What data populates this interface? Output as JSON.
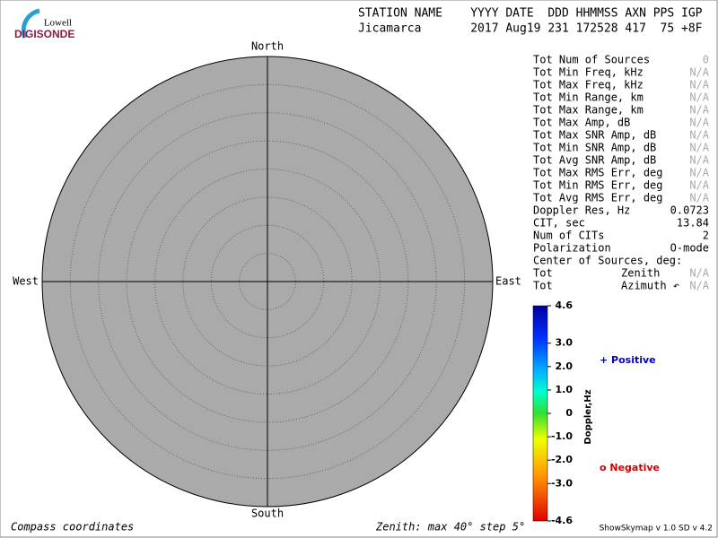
{
  "logo": {
    "top": "Lowell",
    "bottom": "DIGISONDE"
  },
  "header": {
    "line1": "STATION NAME    YYYY DATE  DDD HHMMSS AXN PPS IGP",
    "line2": "Jicamarca       2017 Aug19 231 172528 417  75 +8F"
  },
  "compass": {
    "north": "North",
    "south": "South",
    "east": "East",
    "west": "West",
    "zenith_max": 40,
    "zenith_step": 5
  },
  "stats": {
    "rows": [
      [
        "Tot Num of Sources",
        "0"
      ],
      [
        "Tot Min Freq, kHz",
        "N/A"
      ],
      [
        "Tot Max Freq, kHz",
        "N/A"
      ],
      [
        "Tot Min Range, km",
        "N/A"
      ],
      [
        "Tot Max Range, km",
        "N/A"
      ],
      [
        "Tot Max Amp, dB",
        "N/A"
      ],
      [
        "Tot Max SNR Amp, dB",
        "N/A"
      ],
      [
        "Tot Min SNR Amp, dB",
        "N/A"
      ],
      [
        "Tot Avg SNR Amp, dB",
        "N/A"
      ],
      [
        "Tot Max RMS Err, deg",
        "N/A"
      ],
      [
        "Tot Min RMS Err, deg",
        "N/A"
      ],
      [
        "Tot Avg RMS Err, deg",
        "N/A"
      ],
      [
        "Doppler Res, Hz",
        "0.0723"
      ],
      [
        "CIT, sec",
        "13.84"
      ],
      [
        "Num of CITs",
        "2"
      ],
      [
        "Polarization",
        "O-mode"
      ]
    ],
    "center_title": "Center of Sources, deg:",
    "center_rows": [
      [
        "Tot",
        "Zenith",
        "N/A"
      ],
      [
        "Tot",
        "Azimuth ↶",
        "N/A"
      ]
    ]
  },
  "colorbar": {
    "label": "Doppler,Hz",
    "lim": [
      -4.6,
      4.6
    ],
    "ticks": [
      {
        "value": 4.6,
        "label": "4.6"
      },
      {
        "value": 3,
        "label": "3.0"
      },
      {
        "value": 2,
        "label": "2.0"
      },
      {
        "value": 1,
        "label": "1.0"
      },
      0,
      {
        "value": -1,
        "label": "-1.0"
      },
      {
        "value": -2,
        "label": "-2.0"
      },
      {
        "value": -3,
        "label": "-3.0"
      },
      {
        "value": -4.6,
        "label": "-4.6"
      }
    ]
  },
  "legend": {
    "positive": "+ Positive",
    "negative": "o Negative"
  },
  "footer": {
    "left": "Compass coordinates",
    "center": "Zenith: max 40°  step 5°",
    "right": "ShowSkymap v 1.0  SD v 4.2"
  }
}
